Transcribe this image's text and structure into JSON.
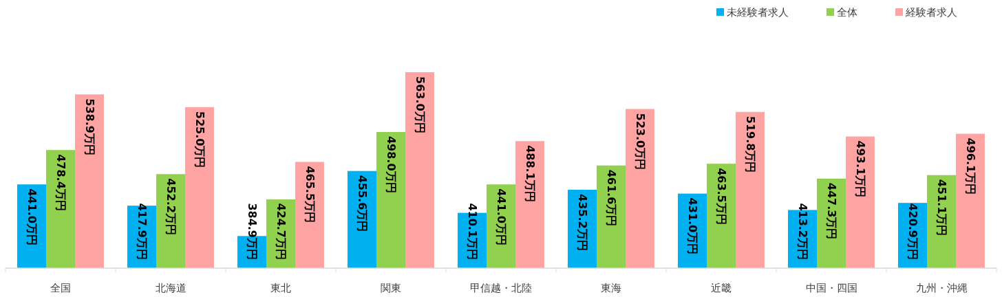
{
  "chart_data": {
    "type": "bar",
    "categories": [
      "全国",
      "北海道",
      "東北",
      "関東",
      "甲信越・北陸",
      "東海",
      "近畿",
      "中国・四国",
      "九州・沖縄"
    ],
    "series": [
      {
        "name": "未経験者求人",
        "color": "#00b0f0",
        "values": [
          441.0,
          417.9,
          384.9,
          455.6,
          410.1,
          435.2,
          431.0,
          413.2,
          420.9
        ],
        "value_labels": [
          "441.0万円",
          "417.9万円",
          "384.9万円",
          "455.6万円",
          "410.1万円",
          "435.2万円",
          "431.0万円",
          "413.2万円",
          "420.9万円"
        ]
      },
      {
        "name": "全体",
        "color": "#92d050",
        "values": [
          478.4,
          452.2,
          424.7,
          498.0,
          441.0,
          461.6,
          463.5,
          447.3,
          451.1
        ],
        "value_labels": [
          "478.4万円",
          "452.2万円",
          "424.7万円",
          "498.0万円",
          "441.0万円",
          "461.6万円",
          "463.5万円",
          "447.3万円",
          "451.1万円"
        ]
      },
      {
        "name": "経験者求人",
        "color": "#ffa3a3",
        "values": [
          538.9,
          525.0,
          465.5,
          563.0,
          488.1,
          523.0,
          519.8,
          493.1,
          496.1
        ],
        "value_labels": [
          "538.9万円",
          "525.0万円",
          "465.5万円",
          "563.0万円",
          "488.1万円",
          "523.0万円",
          "519.8万円",
          "493.1万円",
          "496.1万円"
        ]
      }
    ],
    "ylim": [
      350,
      563.0
    ],
    "legend": "top right",
    "tick_labels": "x"
  }
}
